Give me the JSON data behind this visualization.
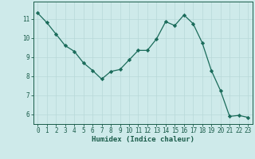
{
  "x": [
    0,
    1,
    2,
    3,
    4,
    5,
    6,
    7,
    8,
    9,
    10,
    11,
    12,
    13,
    14,
    15,
    16,
    17,
    18,
    19,
    20,
    21,
    22,
    23
  ],
  "y": [
    11.3,
    10.8,
    10.2,
    9.6,
    9.3,
    8.7,
    8.3,
    7.85,
    8.25,
    8.35,
    8.85,
    9.35,
    9.35,
    9.95,
    10.85,
    10.65,
    11.2,
    10.75,
    9.75,
    8.3,
    7.25,
    5.9,
    5.95,
    5.85
  ],
  "line_color": "#1a6b5a",
  "marker": "D",
  "marker_size": 2.2,
  "bg_color": "#ceeaea",
  "grid_color": "#b8d8d8",
  "xlabel": "Humidex (Indice chaleur)",
  "ylim": [
    5.5,
    11.9
  ],
  "xlim": [
    -0.5,
    23.5
  ],
  "yticks": [
    6,
    7,
    8,
    9,
    10,
    11
  ],
  "xticks": [
    0,
    1,
    2,
    3,
    4,
    5,
    6,
    7,
    8,
    9,
    10,
    11,
    12,
    13,
    14,
    15,
    16,
    17,
    18,
    19,
    20,
    21,
    22,
    23
  ],
  "font_color": "#1a5c4a",
  "label_fontsize": 6.5,
  "tick_fontsize": 5.5
}
